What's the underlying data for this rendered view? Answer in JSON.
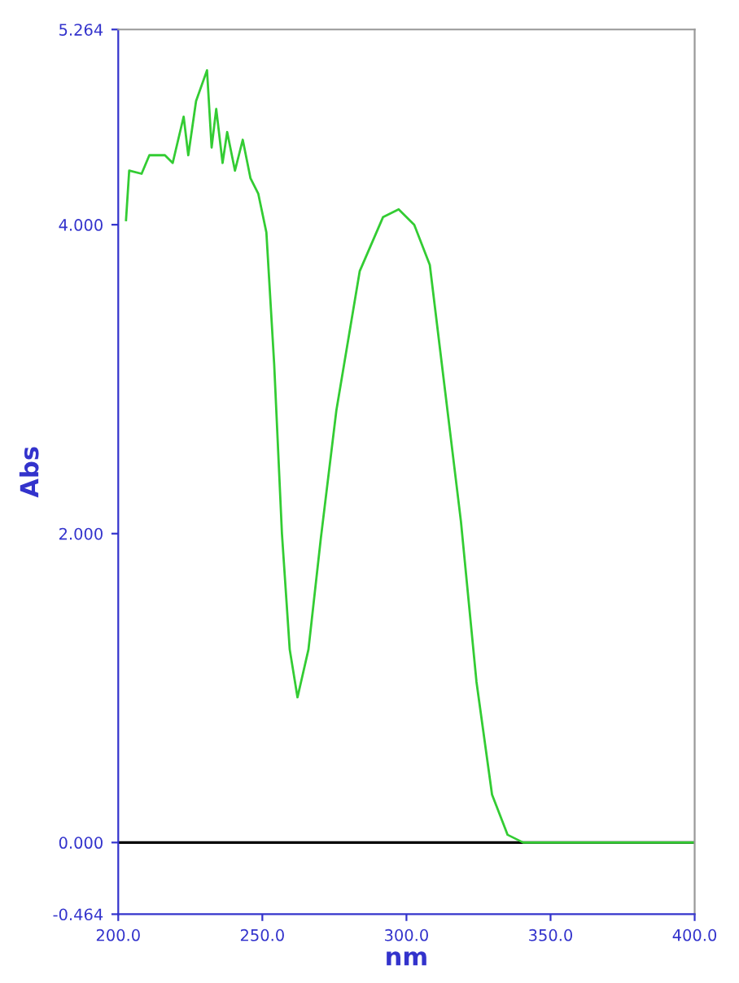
{
  "chart_data": {
    "type": "line",
    "xlabel": "nm",
    "ylabel": "Abs",
    "xlim": [
      200,
      400
    ],
    "ylim": [
      -0.464,
      5.264
    ],
    "xticks": [
      {
        "value": 200,
        "label": "200.0"
      },
      {
        "value": 250,
        "label": "250.0"
      },
      {
        "value": 300,
        "label": "300.0"
      },
      {
        "value": 350,
        "label": "350.0"
      },
      {
        "value": 400,
        "label": "400.0"
      }
    ],
    "yticks": [
      {
        "value": -0.464,
        "label": "-0.464"
      },
      {
        "value": 0,
        "label": "0.000"
      },
      {
        "value": 2,
        "label": "2.000"
      },
      {
        "value": 4,
        "label": "4.000"
      },
      {
        "value": 5.264,
        "label": "5.264"
      }
    ],
    "ref_lines": [
      {
        "axis": "y",
        "value": 0,
        "label": null,
        "color": "#000000"
      }
    ],
    "grid": false,
    "marker": "none",
    "line_style": "solid",
    "series": [
      {
        "color": "#33cc33",
        "x": [
          202.7,
          203.8,
          208.1,
          210.8,
          216.2,
          218.9,
          222.7,
          224.3,
          227.0,
          230.8,
          232.4,
          234.0,
          236.2,
          237.8,
          240.5,
          243.2,
          245.9,
          248.6,
          251.4,
          254.1,
          256.8,
          259.5,
          262.2,
          266.0,
          270.3,
          275.7,
          283.8,
          291.9,
          297.3,
          302.7,
          308.1,
          313.5,
          318.9,
          324.3,
          329.7,
          335.1,
          340.5,
          400.0
        ],
        "values": [
          4.03,
          4.35,
          4.33,
          4.45,
          4.45,
          4.4,
          4.7,
          4.45,
          4.8,
          5.0,
          4.5,
          4.75,
          4.4,
          4.6,
          4.35,
          4.55,
          4.3,
          4.2,
          3.95,
          3.1,
          2.0,
          1.25,
          0.94,
          1.25,
          1.97,
          2.8,
          3.7,
          4.05,
          4.1,
          4.0,
          3.74,
          2.91,
          2.08,
          1.04,
          0.31,
          0.05,
          0.0,
          0.0
        ]
      }
    ]
  }
}
